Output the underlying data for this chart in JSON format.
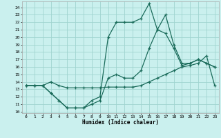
{
  "xlabel": "Humidex (Indice chaleur)",
  "xlim": [
    -0.5,
    23.5
  ],
  "ylim": [
    9.8,
    24.8
  ],
  "xticks": [
    0,
    1,
    2,
    3,
    4,
    5,
    6,
    7,
    8,
    9,
    10,
    11,
    12,
    13,
    14,
    15,
    16,
    17,
    18,
    19,
    20,
    21,
    22,
    23
  ],
  "yticks": [
    10,
    11,
    12,
    13,
    14,
    15,
    16,
    17,
    18,
    19,
    20,
    21,
    22,
    23,
    24
  ],
  "bg_color": "#caf0ee",
  "grid_color": "#a0d4d0",
  "line_color": "#1a6b5a",
  "line1_x": [
    0,
    1,
    2,
    3,
    4,
    5,
    6,
    7,
    8,
    9,
    10,
    11,
    12,
    13,
    14,
    15,
    16,
    17,
    18,
    19,
    20,
    21,
    22,
    23
  ],
  "line1_y": [
    13.5,
    13.5,
    13.5,
    14.0,
    13.5,
    13.2,
    13.2,
    13.2,
    13.2,
    13.2,
    13.3,
    13.3,
    13.3,
    13.3,
    13.5,
    14.0,
    14.5,
    15.0,
    15.5,
    16.0,
    16.2,
    16.5,
    17.5,
    13.5
  ],
  "line2_x": [
    0,
    1,
    2,
    3,
    4,
    5,
    6,
    7,
    8,
    9,
    10,
    11,
    12,
    13,
    14,
    15,
    16,
    17,
    18,
    19,
    20,
    21,
    22,
    23
  ],
  "line2_y": [
    13.5,
    13.5,
    13.5,
    12.5,
    11.5,
    10.5,
    10.5,
    10.5,
    11.0,
    11.5,
    14.5,
    15.0,
    14.5,
    14.5,
    15.5,
    18.5,
    21.0,
    20.5,
    18.5,
    16.2,
    16.5,
    17.0,
    16.5,
    16.0
  ],
  "line3_x": [
    0,
    1,
    2,
    3,
    4,
    5,
    6,
    7,
    8,
    9,
    10,
    11,
    12,
    13,
    14,
    15,
    16,
    17,
    18,
    19,
    20,
    21,
    22,
    23
  ],
  "line3_y": [
    13.5,
    13.5,
    13.5,
    12.5,
    11.5,
    10.5,
    10.5,
    10.5,
    11.5,
    12.0,
    20.0,
    22.0,
    22.0,
    22.0,
    22.5,
    24.5,
    21.0,
    23.0,
    19.0,
    16.5,
    16.5,
    17.0,
    16.5,
    16.0
  ]
}
